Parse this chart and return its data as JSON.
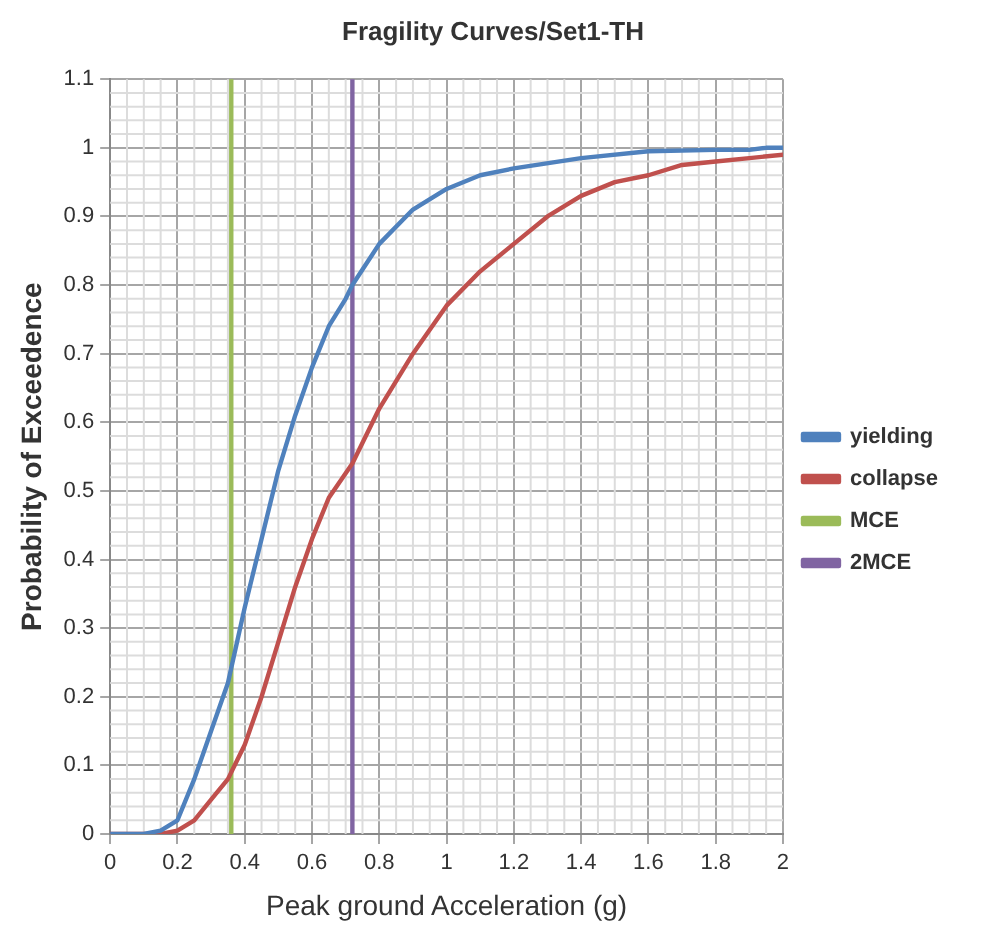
{
  "chart_data": {
    "type": "line",
    "title": "Fragility Curves/Set1-TH",
    "xlabel": "Peak ground Acceleration (g)",
    "ylabel": "Probability of Exceedence",
    "xlim": [
      0,
      2
    ],
    "xticks": [
      0,
      0.2,
      0.4,
      0.6,
      0.8,
      1,
      1.2,
      1.4,
      1.6,
      1.8,
      2
    ],
    "ylim": [
      0,
      1.1
    ],
    "yticks": [
      0,
      0.1,
      0.2,
      0.3,
      0.4,
      0.5,
      0.6,
      0.7,
      0.8,
      0.9,
      1,
      1.1
    ],
    "grid": true,
    "legend": "right",
    "marker": "none",
    "line_style": "solid",
    "series": [
      {
        "name": "yielding",
        "color": "#4f81bd",
        "x": [
          0,
          0.1,
          0.15,
          0.2,
          0.25,
          0.3,
          0.35,
          0.4,
          0.45,
          0.5,
          0.55,
          0.6,
          0.65,
          0.7,
          0.72,
          0.8,
          0.9,
          1,
          1.1,
          1.2,
          1.4,
          1.6,
          1.8,
          1.9,
          1.95,
          2
        ],
        "values": [
          0,
          0,
          0.005,
          0.02,
          0.08,
          0.15,
          0.22,
          0.33,
          0.43,
          0.53,
          0.61,
          0.68,
          0.74,
          0.78,
          0.8,
          0.86,
          0.91,
          0.94,
          0.96,
          0.97,
          0.985,
          0.995,
          0.997,
          0.997,
          1,
          1
        ]
      },
      {
        "name": "collapse",
        "color": "#c0504d",
        "x": [
          0,
          0.15,
          0.2,
          0.25,
          0.3,
          0.35,
          0.4,
          0.45,
          0.5,
          0.55,
          0.6,
          0.65,
          0.72,
          0.8,
          0.9,
          1,
          1.1,
          1.2,
          1.3,
          1.4,
          1.5,
          1.6,
          1.7,
          1.8,
          1.9,
          2
        ],
        "values": [
          0,
          0,
          0.005,
          0.02,
          0.05,
          0.08,
          0.13,
          0.2,
          0.28,
          0.36,
          0.43,
          0.49,
          0.54,
          0.62,
          0.7,
          0.77,
          0.82,
          0.86,
          0.9,
          0.93,
          0.95,
          0.96,
          0.975,
          0.98,
          0.985,
          0.99
        ]
      },
      {
        "name": "MCE",
        "color": "#9bbb59",
        "x": [
          0.36,
          0.36
        ],
        "values": [
          0,
          1.1
        ]
      },
      {
        "name": "2MCE",
        "color": "#8064a2",
        "x": [
          0.72,
          0.72
        ],
        "values": [
          0,
          1.1
        ]
      }
    ]
  }
}
